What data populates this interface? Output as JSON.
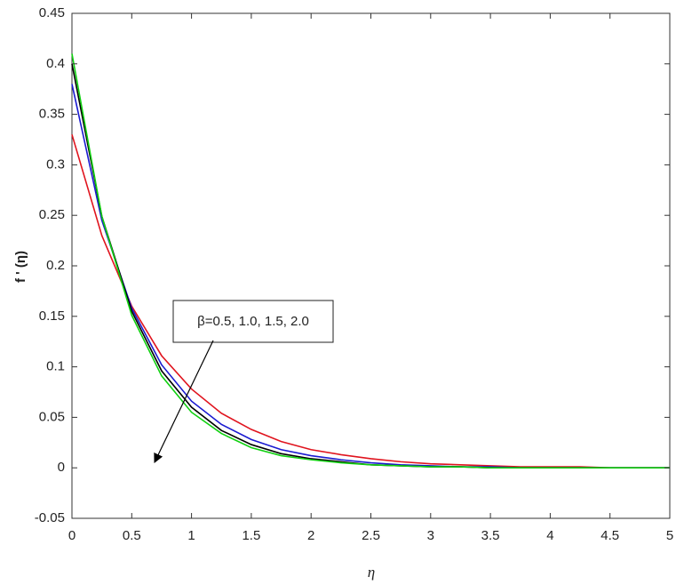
{
  "chart_data": {
    "type": "line",
    "x_label": "η",
    "y_label": "f ' (η)",
    "annotation": "β=0.5, 1.0, 1.5, 2.0",
    "x": [
      0,
      0.25,
      0.5,
      0.75,
      1,
      1.25,
      1.5,
      1.75,
      2,
      2.25,
      2.5,
      2.75,
      3,
      3.25,
      3.5,
      3.75,
      4,
      4.25,
      4.5,
      4.75,
      5
    ],
    "series": [
      {
        "name": "β=0.5",
        "color": "#e0141e",
        "values": [
          0.33,
          0.23,
          0.16,
          0.111,
          0.078,
          0.054,
          0.038,
          0.026,
          0.018,
          0.013,
          0.009,
          0.006,
          0.004,
          0.003,
          0.002,
          0.001,
          0.001,
          0.001,
          0,
          0,
          0
        ]
      },
      {
        "name": "β=1.0",
        "color": "#1a1ad0",
        "values": [
          0.38,
          0.245,
          0.158,
          0.102,
          0.066,
          0.043,
          0.028,
          0.018,
          0.012,
          0.008,
          0.005,
          0.003,
          0.002,
          0.001,
          0.001,
          0,
          0,
          0,
          0,
          0,
          0
        ]
      },
      {
        "name": "β=1.5",
        "color": "#000000",
        "values": [
          0.4,
          0.249,
          0.155,
          0.096,
          0.06,
          0.037,
          0.023,
          0.014,
          0.009,
          0.006,
          0.003,
          0.002,
          0.001,
          0.001,
          0,
          0,
          0,
          0,
          0,
          0,
          0
        ]
      },
      {
        "name": "β=2.0",
        "color": "#10d010",
        "values": [
          0.41,
          0.249,
          0.151,
          0.091,
          0.055,
          0.034,
          0.02,
          0.012,
          0.008,
          0.005,
          0.003,
          0.002,
          0.001,
          0.001,
          0,
          0,
          0,
          0,
          0,
          0,
          0
        ]
      }
    ],
    "xlim": [
      0,
      5
    ],
    "ylim": [
      -0.05,
      0.45
    ],
    "xticks": [
      0,
      0.5,
      1,
      1.5,
      2,
      2.5,
      3,
      3.5,
      4,
      4.5,
      5
    ],
    "yticks": [
      -0.05,
      0,
      0.05,
      0.1,
      0.15,
      0.2,
      0.25,
      0.3,
      0.35,
      0.4,
      0.45
    ]
  }
}
